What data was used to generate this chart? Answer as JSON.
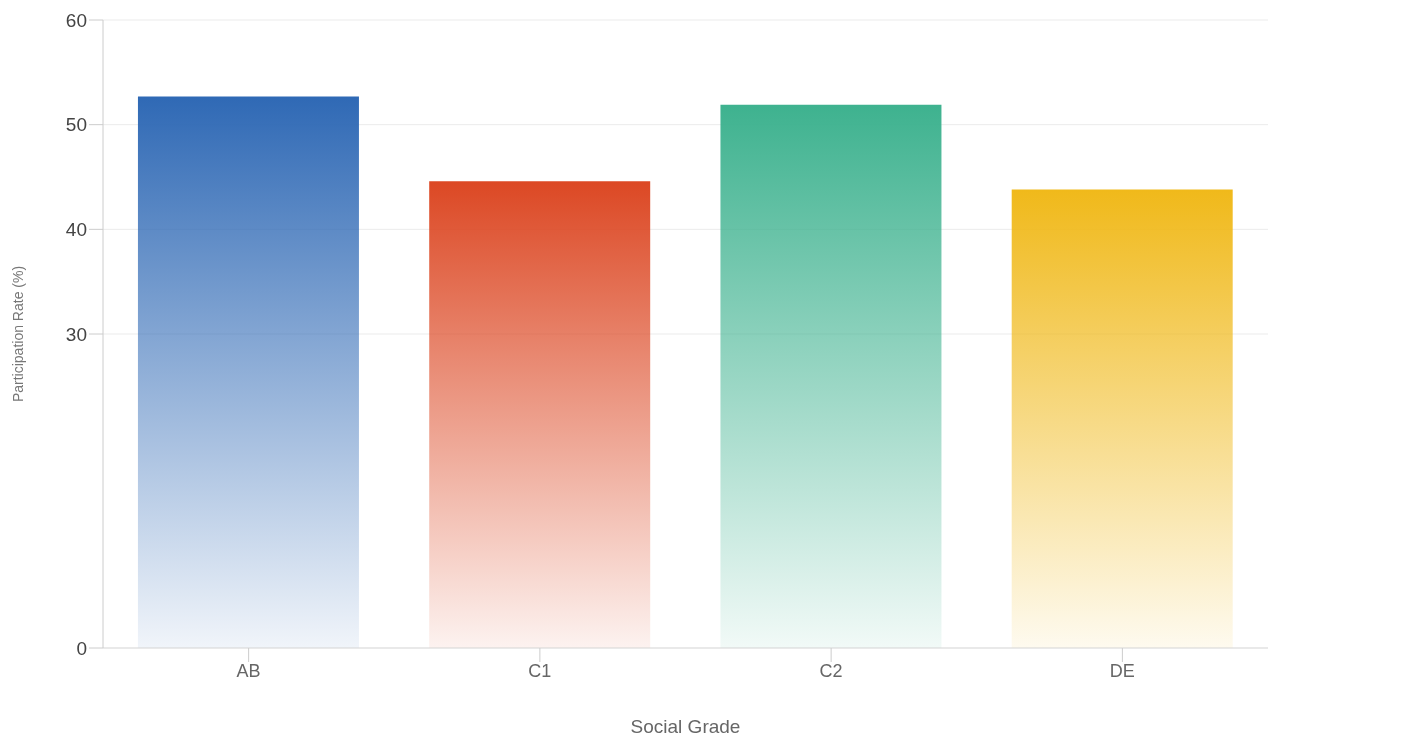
{
  "chart_data": {
    "type": "bar",
    "xlabel": "Social Grade",
    "ylabel": "Participation Rate (%)",
    "categories": [
      "AB",
      "C1",
      "C2",
      "DE"
    ],
    "values": [
      52.7,
      44.6,
      51.9,
      43.8
    ],
    "colors": [
      "#2f69b5",
      "#dc4824",
      "#3eb28f",
      "#f0b91a"
    ],
    "ylim": [
      0,
      60
    ],
    "yticks": [
      0,
      30,
      40,
      50,
      60
    ],
    "grid": "y"
  }
}
